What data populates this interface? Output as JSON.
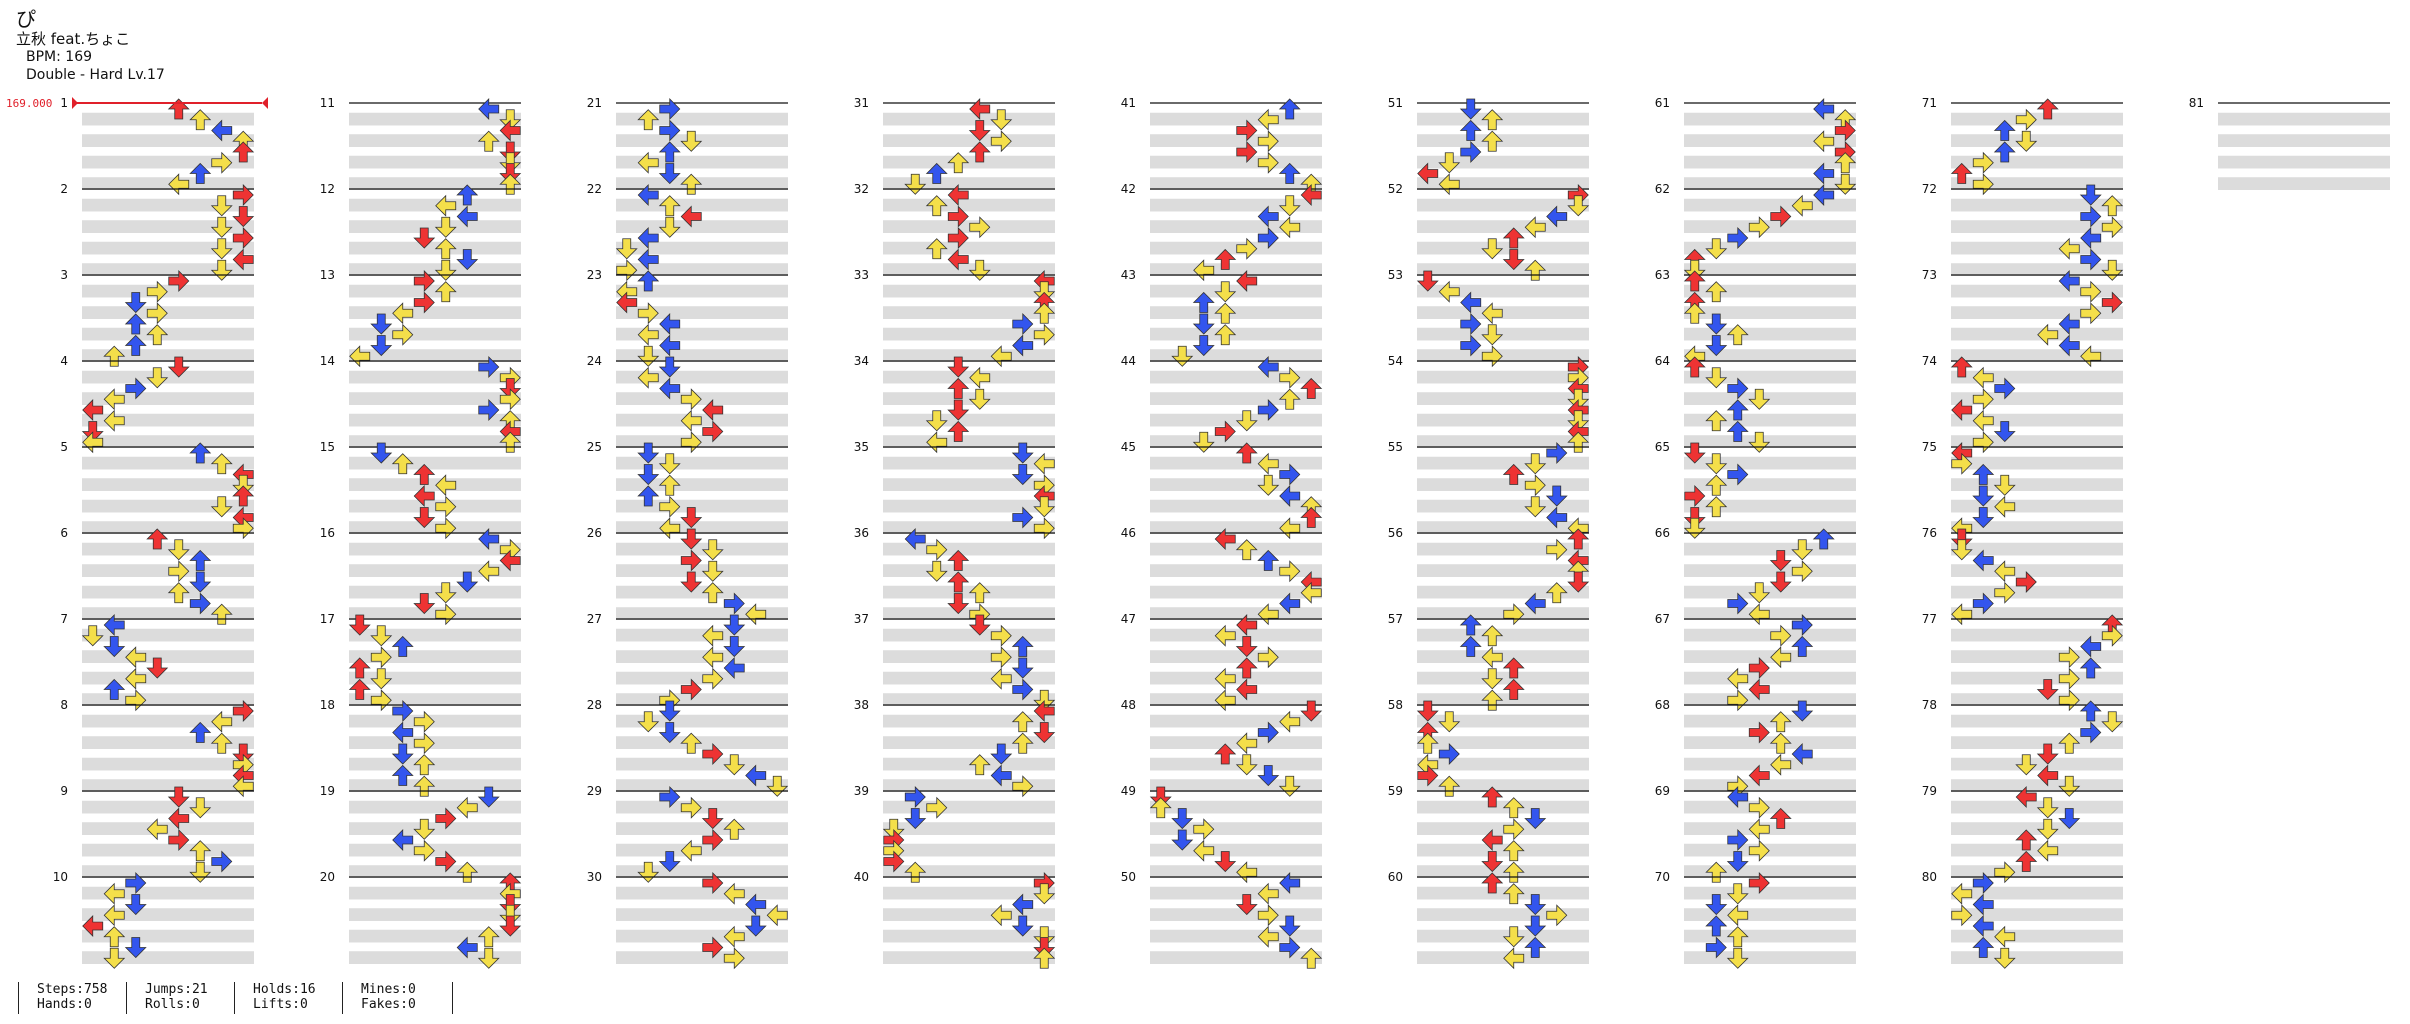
{
  "song": {
    "title": "ぴ",
    "artist": "立秋 feat.ちょこ",
    "bpm_text": "BPM: 169",
    "difficulty_text": "Double - Hard  Lv.17"
  },
  "bpm_marker": "169.000",
  "measure_numbers": [
    "1",
    "2",
    "3",
    "4",
    "5",
    "6",
    "7",
    "8",
    "9",
    "10",
    "11",
    "12",
    "13",
    "14",
    "15",
    "16",
    "17",
    "18",
    "19",
    "20",
    "21",
    "22",
    "23",
    "24",
    "25",
    "26",
    "27",
    "28",
    "29",
    "30",
    "31",
    "32",
    "33",
    "34",
    "35",
    "36",
    "37",
    "38",
    "39",
    "40",
    "41",
    "42",
    "43",
    "44",
    "45",
    "46",
    "47",
    "48",
    "49",
    "50",
    "51",
    "52",
    "53",
    "54",
    "55",
    "56",
    "57",
    "58",
    "59",
    "60",
    "61",
    "62",
    "63",
    "64",
    "65",
    "66",
    "67",
    "68",
    "69",
    "70",
    "71",
    "72",
    "73",
    "74",
    "75",
    "76",
    "77",
    "78",
    "79",
    "80",
    "81"
  ],
  "stats": {
    "steps": "Steps:758",
    "hands": "Hands:0",
    "jumps": "Jumps:21",
    "rolls": "Rolls:0",
    "holds": "Holds:16",
    "lifts": "Lifts:0",
    "mines": "Mines:0",
    "fakes": "Fakes:0"
  },
  "colors": {
    "red": "#ee3333",
    "blue": "#3355ee",
    "yellow": "#f4df4a",
    "purple": "#a040ee",
    "hold": "#9ee6a6",
    "band": "#dcdcdc",
    "bpm": "#e0202a"
  },
  "arrow_glyphs": [
    "left-arrow-icon",
    "down-arrow-icon",
    "up-arrow-icon",
    "right-arrow-icon"
  ]
}
